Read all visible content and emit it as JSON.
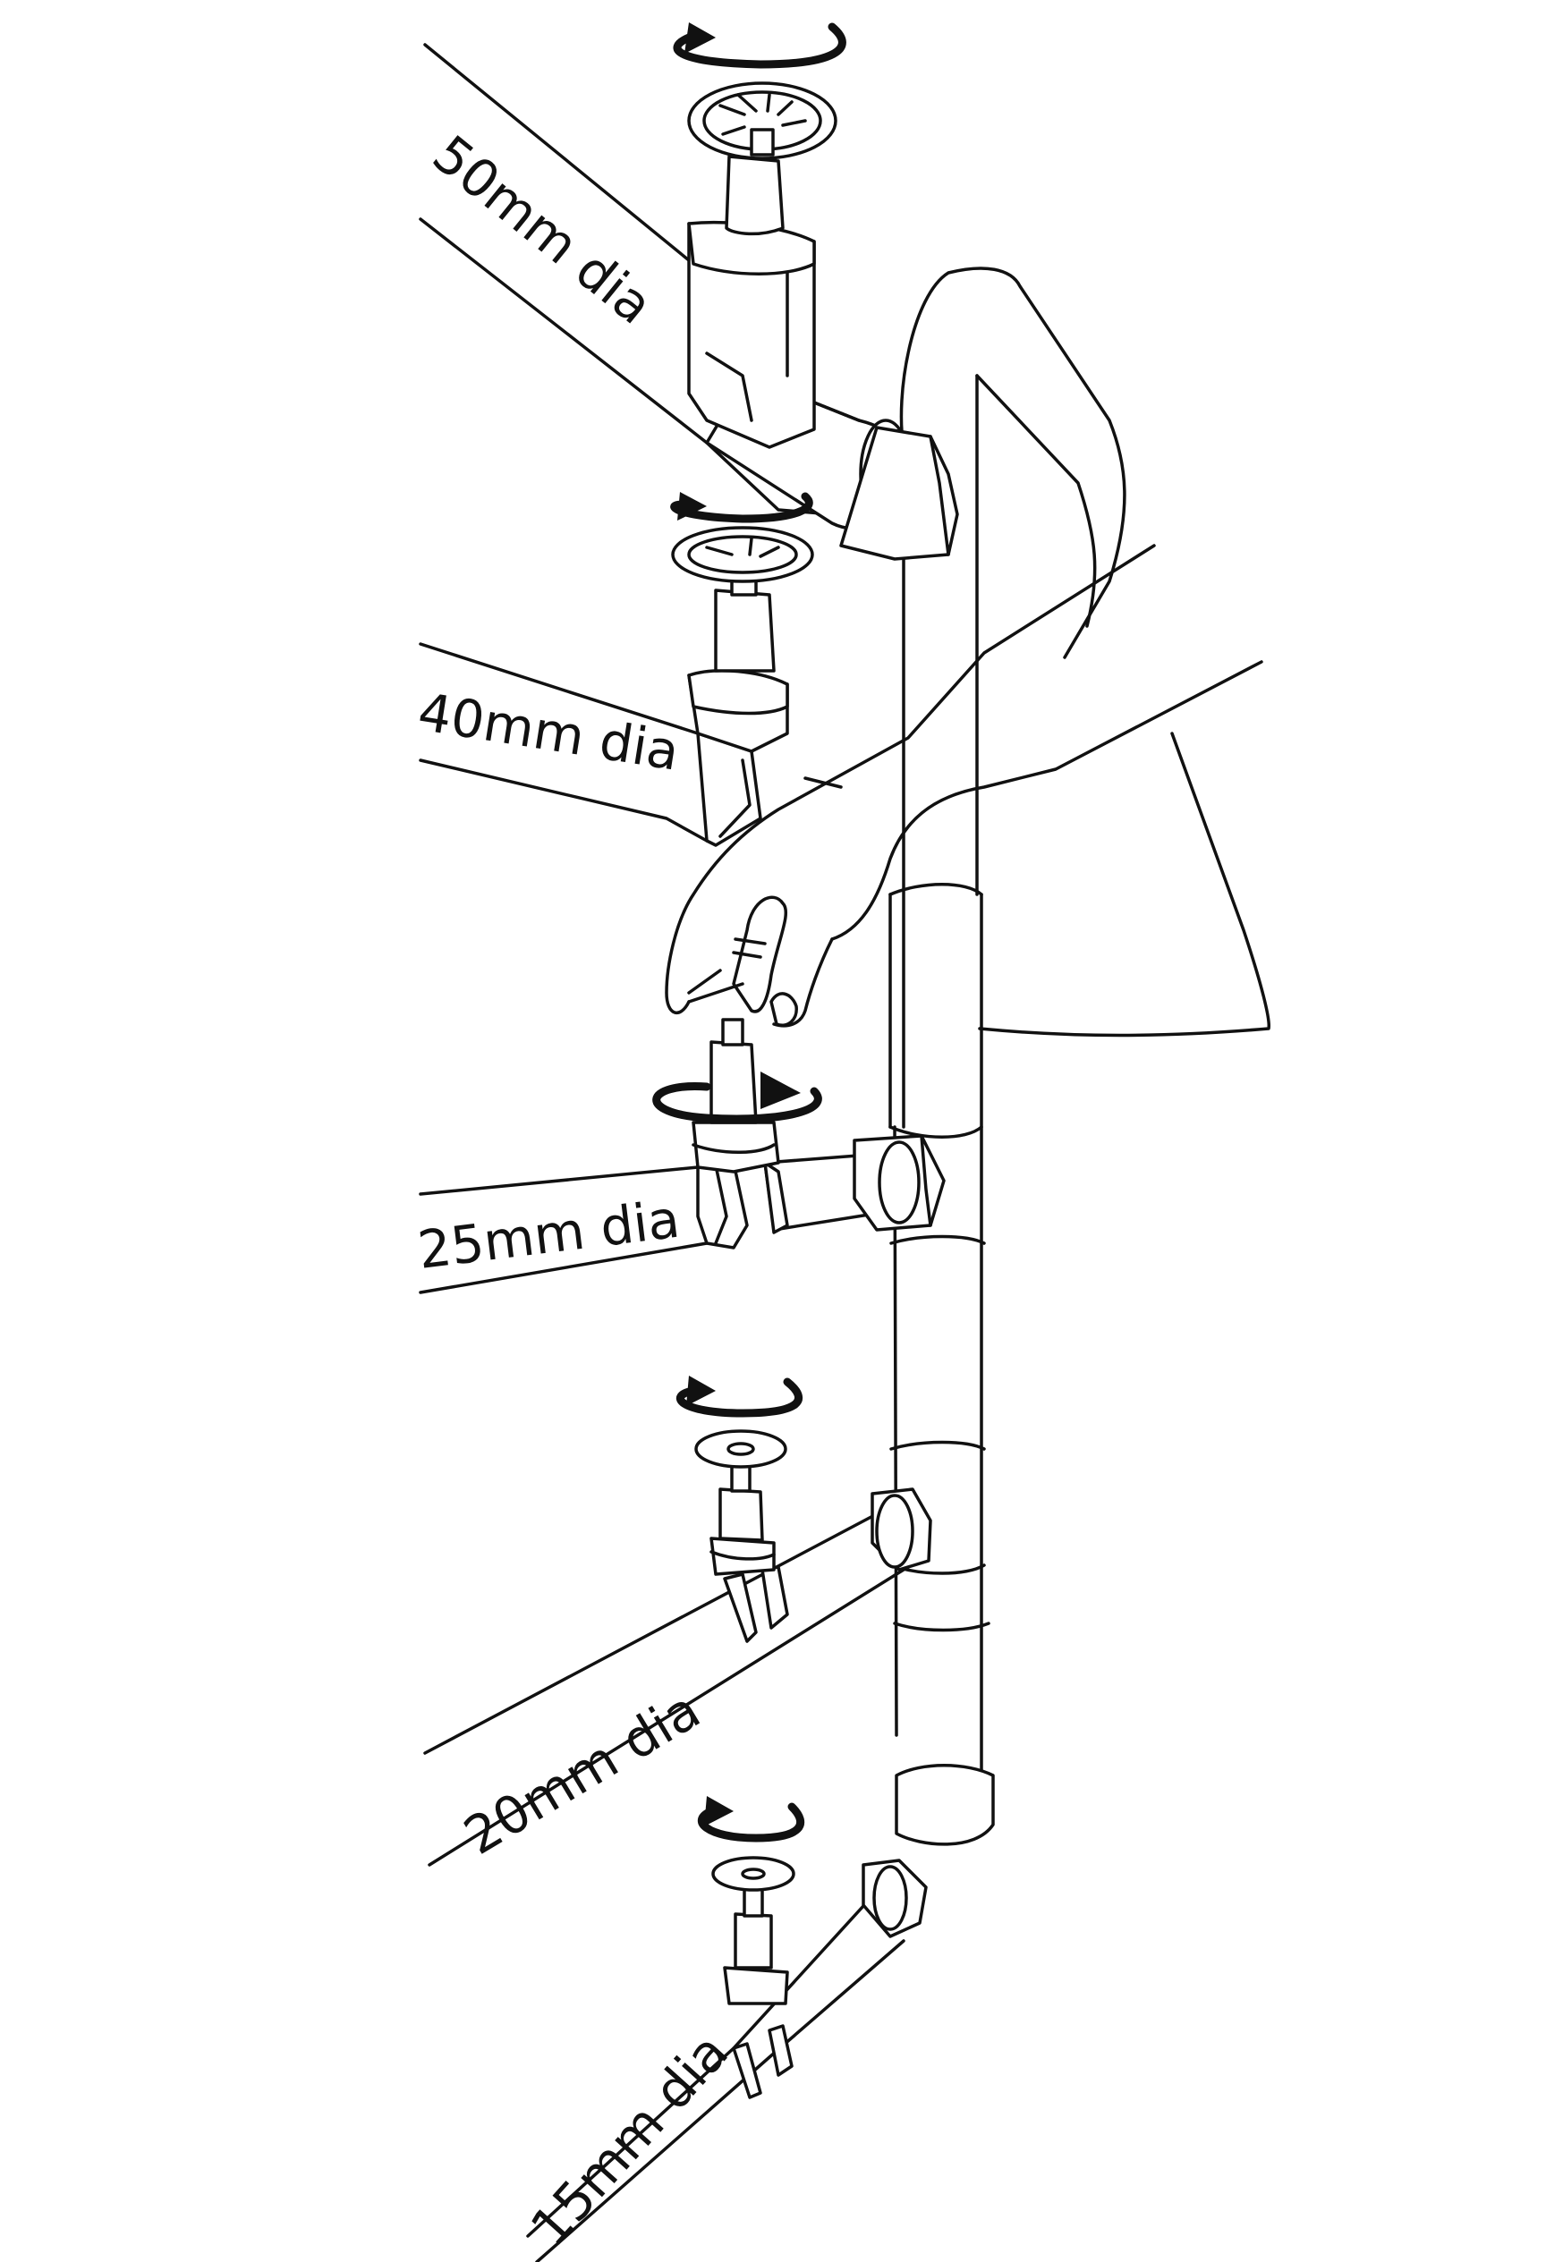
{
  "labels": {
    "pipe_50": "50mm dia",
    "pipe_40": "40mm dia",
    "pipe_25": "25mm dia",
    "pipe_20": "20mm dia",
    "pipe_15": "15mm dia"
  },
  "colors": {
    "line": "#111111",
    "background": "#ffffff"
  }
}
